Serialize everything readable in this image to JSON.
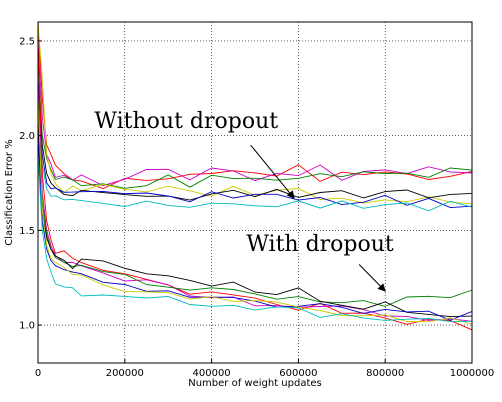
{
  "chart_data": {
    "type": "line",
    "title": "",
    "xlabel": "Number of weight updates",
    "ylabel": "Classification Error %",
    "xlim": [
      0,
      1000000
    ],
    "ylim": [
      0.8,
      2.6
    ],
    "xticks": [
      0,
      200000,
      400000,
      600000,
      800000,
      1000000
    ],
    "yticks": [
      1.0,
      1.5,
      2.0,
      2.5
    ],
    "xtick_labels": [
      "0",
      "200000",
      "400000",
      "600000",
      "800000",
      "1000000"
    ],
    "ytick_labels": [
      "1.0",
      "1.5",
      "2.0",
      "2.5"
    ],
    "grid": true,
    "legend": "none",
    "x": [
      0,
      10000,
      20000,
      30000,
      40000,
      60000,
      80000,
      100000,
      150000,
      200000,
      250000,
      300000,
      350000,
      400000,
      450000,
      500000,
      550000,
      600000,
      650000,
      700000,
      750000,
      800000,
      850000,
      900000,
      950000,
      1000000
    ],
    "series": [
      {
        "color": "#ff0000",
        "values": [
          2.6,
          2.2,
          1.95,
          1.9,
          1.82,
          1.8,
          1.78,
          1.77,
          1.74,
          1.78,
          1.75,
          1.78,
          1.82,
          1.78,
          1.8,
          1.79,
          1.8,
          1.82,
          1.78,
          1.81,
          1.79,
          1.8,
          1.82,
          1.79,
          1.81,
          1.8
        ]
      },
      {
        "color": "#cc00cc",
        "values": [
          2.5,
          2.1,
          1.9,
          1.85,
          1.8,
          1.78,
          1.79,
          1.8,
          1.76,
          1.75,
          1.8,
          1.82,
          1.79,
          1.84,
          1.8,
          1.78,
          1.82,
          1.8,
          1.83,
          1.79,
          1.8,
          1.82,
          1.8,
          1.83,
          1.79,
          1.82
        ]
      },
      {
        "color": "#008000",
        "values": [
          2.4,
          2.0,
          1.88,
          1.82,
          1.78,
          1.76,
          1.75,
          1.74,
          1.72,
          1.73,
          1.76,
          1.78,
          1.75,
          1.78,
          1.76,
          1.77,
          1.79,
          1.77,
          1.8,
          1.78,
          1.79,
          1.81,
          1.78,
          1.8,
          1.82,
          1.81
        ]
      },
      {
        "color": "#cccc00",
        "values": [
          2.6,
          2.3,
          1.9,
          1.8,
          1.75,
          1.72,
          1.73,
          1.71,
          1.72,
          1.7,
          1.72,
          1.71,
          1.73,
          1.7,
          1.72,
          1.71,
          1.69,
          1.7,
          1.68,
          1.69,
          1.67,
          1.68,
          1.66,
          1.67,
          1.65,
          1.66
        ]
      },
      {
        "color": "#000000",
        "values": [
          2.3,
          1.95,
          1.8,
          1.75,
          1.72,
          1.7,
          1.69,
          1.71,
          1.68,
          1.7,
          1.69,
          1.7,
          1.68,
          1.69,
          1.7,
          1.68,
          1.7,
          1.69,
          1.68,
          1.7,
          1.69,
          1.68,
          1.7,
          1.69,
          1.7,
          1.69
        ]
      },
      {
        "color": "#0000cc",
        "values": [
          2.2,
          1.9,
          1.75,
          1.72,
          1.71,
          1.7,
          1.72,
          1.7,
          1.69,
          1.68,
          1.7,
          1.69,
          1.67,
          1.68,
          1.66,
          1.67,
          1.68,
          1.66,
          1.67,
          1.65,
          1.66,
          1.67,
          1.65,
          1.66,
          1.64,
          1.65
        ]
      },
      {
        "color": "#00bbbb",
        "values": [
          2.1,
          1.85,
          1.72,
          1.68,
          1.66,
          1.65,
          1.64,
          1.65,
          1.63,
          1.64,
          1.65,
          1.63,
          1.64,
          1.65,
          1.63,
          1.64,
          1.62,
          1.64,
          1.63,
          1.64,
          1.62,
          1.63,
          1.64,
          1.62,
          1.63,
          1.62
        ]
      },
      {
        "color": "#ff0000",
        "values": [
          2.5,
          1.8,
          1.55,
          1.45,
          1.4,
          1.37,
          1.34,
          1.32,
          1.28,
          1.26,
          1.23,
          1.2,
          1.18,
          1.16,
          1.15,
          1.13,
          1.11,
          1.1,
          1.09,
          1.07,
          1.06,
          1.04,
          1.03,
          1.02,
          1.01,
          1.0
        ]
      },
      {
        "color": "#cc00cc",
        "values": [
          2.3,
          1.7,
          1.5,
          1.42,
          1.38,
          1.35,
          1.33,
          1.3,
          1.27,
          1.25,
          1.22,
          1.19,
          1.17,
          1.16,
          1.14,
          1.12,
          1.11,
          1.1,
          1.09,
          1.08,
          1.07,
          1.06,
          1.05,
          1.04,
          1.03,
          1.02
        ]
      },
      {
        "color": "#008000",
        "values": [
          2.2,
          1.65,
          1.48,
          1.4,
          1.36,
          1.34,
          1.32,
          1.3,
          1.28,
          1.26,
          1.24,
          1.22,
          1.2,
          1.19,
          1.18,
          1.16,
          1.15,
          1.14,
          1.13,
          1.12,
          1.11,
          1.12,
          1.13,
          1.14,
          1.15,
          1.16
        ]
      },
      {
        "color": "#000000",
        "values": [
          2.1,
          1.6,
          1.46,
          1.4,
          1.36,
          1.34,
          1.32,
          1.33,
          1.34,
          1.32,
          1.29,
          1.27,
          1.25,
          1.23,
          1.22,
          1.2,
          1.18,
          1.17,
          1.15,
          1.13,
          1.11,
          1.1,
          1.08,
          1.07,
          1.06,
          1.05
        ]
      },
      {
        "color": "#0000cc",
        "values": [
          2.0,
          1.55,
          1.4,
          1.34,
          1.3,
          1.28,
          1.26,
          1.25,
          1.23,
          1.21,
          1.19,
          1.18,
          1.16,
          1.15,
          1.14,
          1.13,
          1.12,
          1.11,
          1.1,
          1.09,
          1.08,
          1.07,
          1.06,
          1.06,
          1.05,
          1.05
        ]
      },
      {
        "color": "#cccc00",
        "values": [
          2.2,
          1.6,
          1.42,
          1.35,
          1.31,
          1.28,
          1.26,
          1.24,
          1.22,
          1.2,
          1.18,
          1.16,
          1.15,
          1.13,
          1.12,
          1.11,
          1.1,
          1.09,
          1.08,
          1.07,
          1.06,
          1.05,
          1.04,
          1.03,
          1.02,
          1.01
        ]
      },
      {
        "color": "#00bbbb",
        "values": [
          1.9,
          1.5,
          1.35,
          1.28,
          1.24,
          1.22,
          1.2,
          1.18,
          1.17,
          1.15,
          1.14,
          1.13,
          1.12,
          1.11,
          1.1,
          1.09,
          1.08,
          1.07,
          1.06,
          1.05,
          1.04,
          1.03,
          1.03,
          1.02,
          1.01,
          1.0
        ]
      }
    ],
    "annotations": [
      {
        "text": "Without dropout",
        "x": 130000,
        "y": 2.04,
        "arrow_to": {
          "x": 590000,
          "y": 1.67
        },
        "arrow_from": {
          "x": 490000,
          "y": 1.95
        }
      },
      {
        "text": "With dropout",
        "x": 480000,
        "y": 1.39,
        "arrow_to": {
          "x": 800000,
          "y": 1.18
        },
        "arrow_from": {
          "x": 740000,
          "y": 1.32
        }
      }
    ]
  }
}
